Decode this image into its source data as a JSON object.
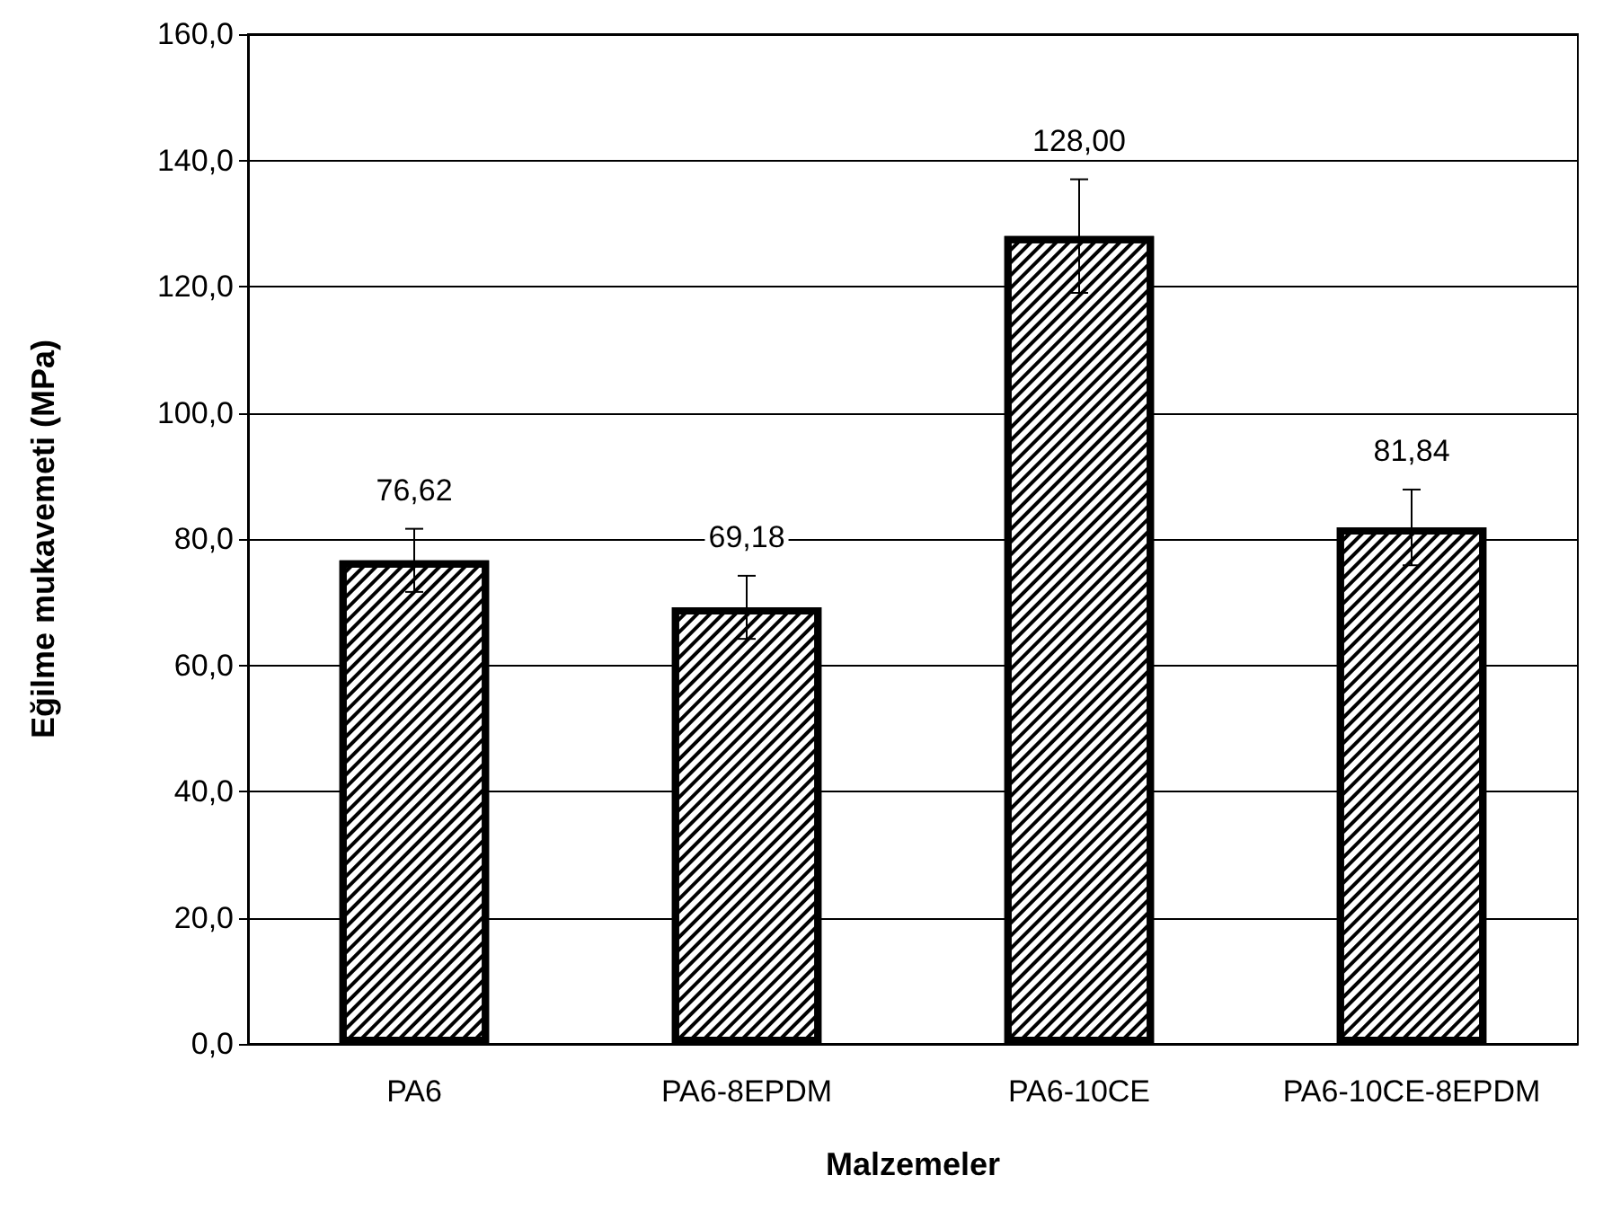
{
  "chart_data": {
    "type": "bar",
    "xlabel": "Malzemeler",
    "ylabel": "Eğilme mukavemeti (MPa)",
    "categories": [
      "PA6",
      "PA6-8EPDM",
      "PA6-10CE",
      "PA6-10CE-8EPDM"
    ],
    "values": [
      76.62,
      69.18,
      128.0,
      81.84
    ],
    "value_labels": [
      "76,62",
      "69,18",
      "128,00",
      "81,84"
    ],
    "errors": [
      5,
      5,
      9,
      6
    ],
    "color": "#000000",
    "ylim": [
      0,
      160
    ],
    "yticks": [
      {
        "value": 0,
        "label": "0,0"
      },
      {
        "value": 20,
        "label": "20,0"
      },
      {
        "value": 40,
        "label": "40,0"
      },
      {
        "value": 60,
        "label": "60,0"
      },
      {
        "value": 80,
        "label": "80,0"
      },
      {
        "value": 100,
        "label": "100,0"
      },
      {
        "value": 120,
        "label": "120,0"
      },
      {
        "value": 140,
        "label": "140,0"
      },
      {
        "value": 160,
        "label": "160,0"
      }
    ],
    "grid": "y"
  }
}
